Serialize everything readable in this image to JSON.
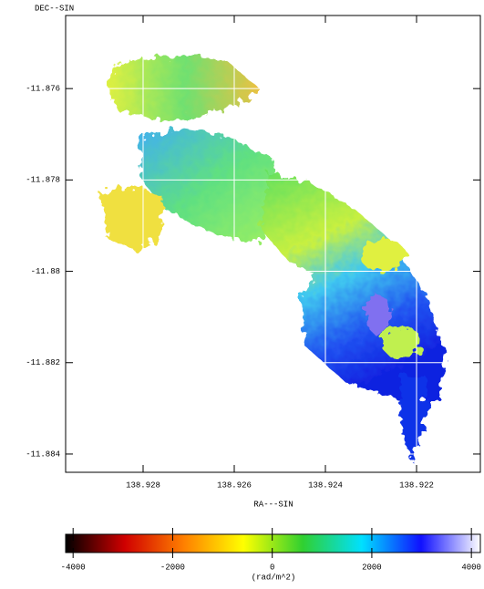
{
  "chart_data": {
    "type": "image",
    "y_label": "DEC--SIN",
    "x_label": "RA---SIN",
    "xlim": [
      138.9297,
      138.9206
    ],
    "ylim": [
      -11.8844,
      -11.8744
    ],
    "xticks": [
      138.928,
      138.926,
      138.924,
      138.922
    ],
    "yticks": [
      -11.876,
      -11.878,
      -11.88,
      -11.882,
      -11.884
    ],
    "grid": true,
    "colorbar": {
      "label": "(rad/m^2)",
      "lim": [
        -4150,
        4180
      ],
      "ticks": [
        -4000,
        -2000,
        0,
        2000,
        4000
      ],
      "colors": [
        "#000000",
        "#d00000",
        "#ff8000",
        "#ffff00",
        "#30d030",
        "#00e0ff",
        "#1010ff",
        "#ffffff"
      ]
    }
  }
}
